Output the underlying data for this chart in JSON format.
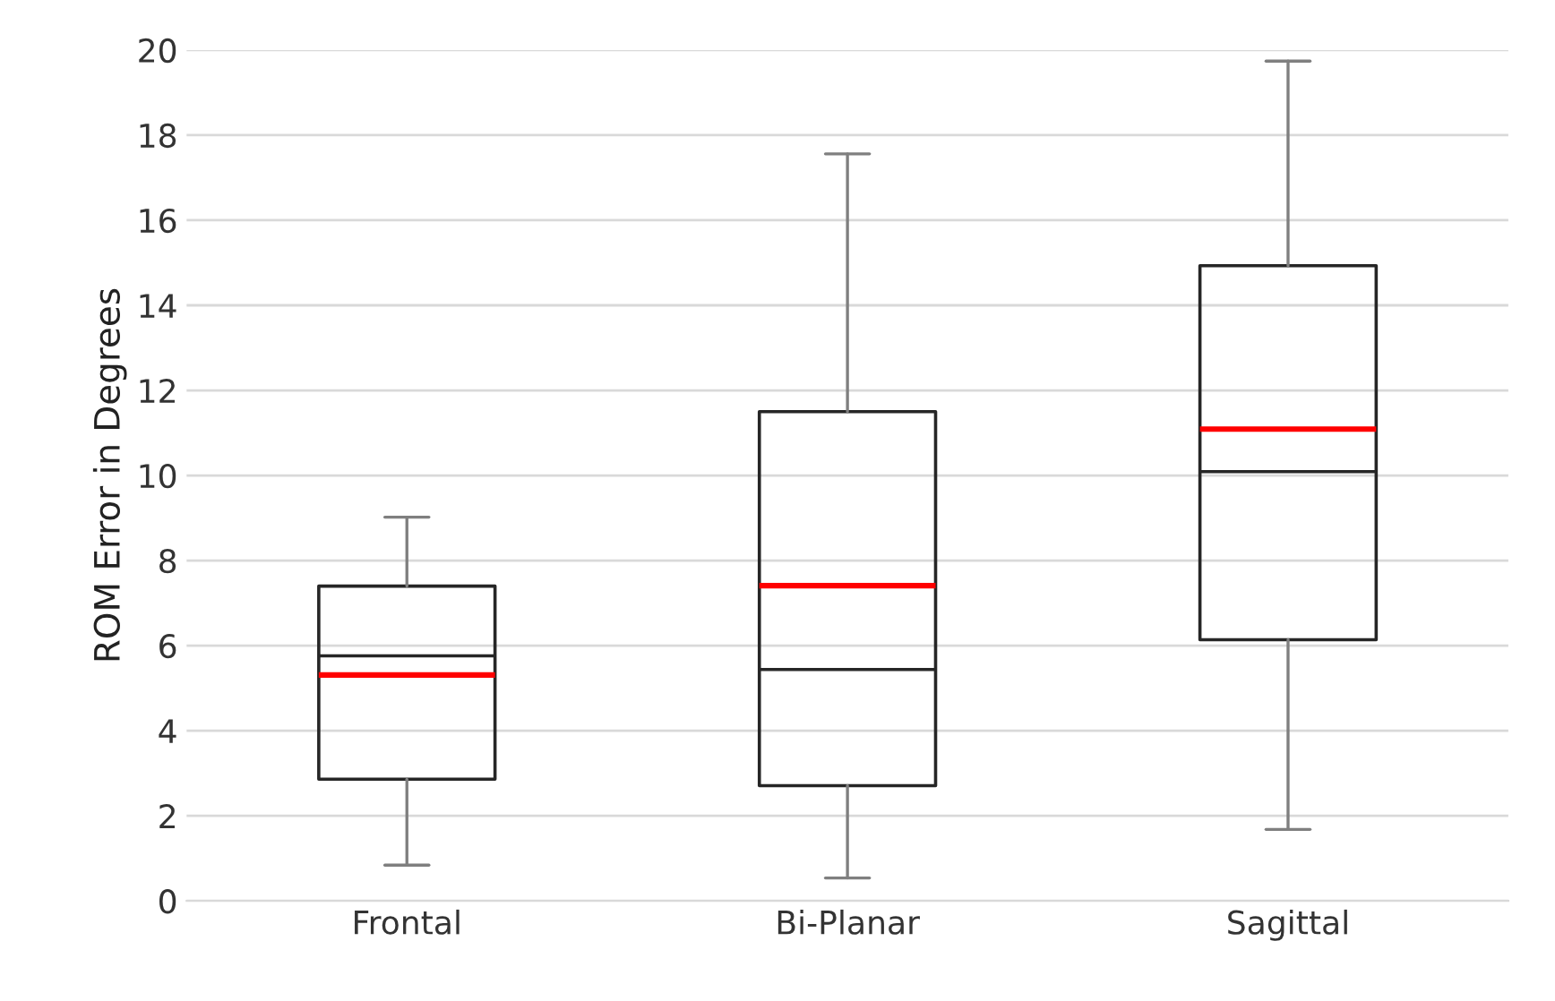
{
  "chart_data": {
    "type": "box",
    "ylabel": "ROM Error in Degrees",
    "categories": [
      "Frontal",
      "Bi-Planar",
      "Sagittal"
    ],
    "boxes": [
      {
        "low": 0.84,
        "q1": 2.86,
        "median": 5.76,
        "q3": 7.4,
        "high": 9.02,
        "mean": 5.31
      },
      {
        "low": 0.54,
        "q1": 2.71,
        "median": 5.44,
        "q3": 11.5,
        "high": 17.56,
        "mean": 7.41
      },
      {
        "low": 1.68,
        "q1": 6.14,
        "median": 10.09,
        "q3": 14.93,
        "high": 19.74,
        "mean": 11.09
      }
    ],
    "ylim": [
      0,
      20
    ],
    "yticks": [
      0,
      2,
      4,
      6,
      8,
      10,
      12,
      14,
      16,
      18,
      20
    ],
    "grid": "y"
  }
}
